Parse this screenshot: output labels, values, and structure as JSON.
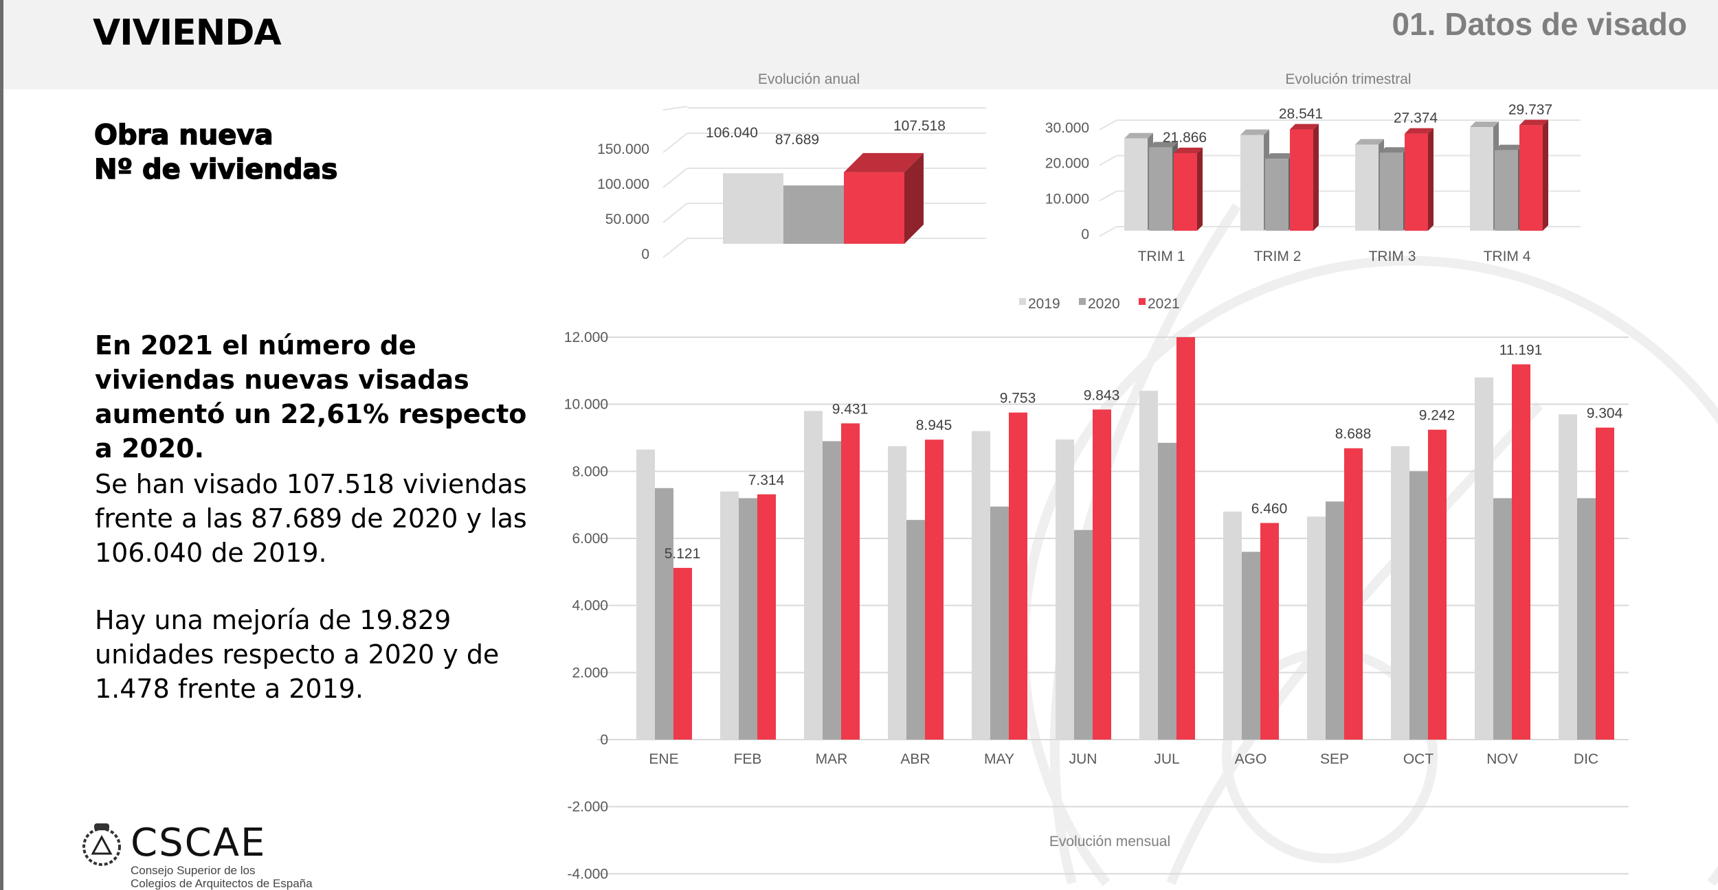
{
  "header": {
    "section": "VIVIENDA",
    "page_title": "01. Datos de visado"
  },
  "subtitle": {
    "line1": "Obra nueva",
    "line2": "Nº de viviendas"
  },
  "text": {
    "p1": "En 2021 el número de viviendas nuevas visadas aumentó un 22,61% respecto a 2020.",
    "p2": "Se han visado 107.518 viviendas frente a las 87.689 de 2020 y las 106.040 de 2019.",
    "p3": "Hay una mejoría de 19.829 unidades respecto a 2020 y de 1.478 frente a 2019."
  },
  "logo": {
    "name": "CSCAE",
    "sub1": "Consejo Superior de los",
    "sub2": "Colegios de Arquitectos de España"
  },
  "colors": {
    "2019": "#d9d9d9",
    "2020": "#a6a6a6",
    "2021": "#ee3a4a"
  },
  "chart_data": [
    {
      "type": "bar",
      "title": "Evolución anual",
      "categories": [
        "2019",
        "2020",
        "2021"
      ],
      "values": [
        106040,
        87689,
        107518
      ],
      "labels": [
        "106.040",
        "87.689",
        "107.518"
      ],
      "yticks": [
        "0",
        "50.000",
        "100.000",
        "150.000"
      ],
      "ylim": [
        0,
        150000
      ]
    },
    {
      "type": "bar",
      "title": "Evolución trimestral",
      "categories": [
        "TRIM 1",
        "TRIM 2",
        "TRIM 3",
        "TRIM 4"
      ],
      "series": [
        {
          "name": "2019",
          "values": [
            26000,
            27000,
            24300,
            29200
          ]
        },
        {
          "name": "2020",
          "values": [
            23500,
            20300,
            22000,
            22700
          ]
        },
        {
          "name": "2021",
          "values": [
            21866,
            28541,
            27374,
            29737
          ]
        }
      ],
      "labels_2021": [
        "21.866",
        "28.541",
        "27.374",
        "29.737"
      ],
      "yticks": [
        "0",
        "10.000",
        "20.000",
        "30.000"
      ],
      "ylim": [
        0,
        30000
      ]
    },
    {
      "type": "bar",
      "title": "Evolución mensual",
      "legend": [
        "2019",
        "2020",
        "2021"
      ],
      "legend_position": "top",
      "categories": [
        "ENE",
        "FEB",
        "MAR",
        "ABR",
        "MAY",
        "JUN",
        "JUL",
        "AGO",
        "SEP",
        "OCT",
        "NOV",
        "DIC"
      ],
      "series": [
        {
          "name": "2019",
          "values": [
            8650,
            7400,
            9800,
            8750,
            9200,
            8950,
            10400,
            6800,
            6650,
            8750,
            10800,
            9700
          ]
        },
        {
          "name": "2020",
          "values": [
            7500,
            7200,
            8900,
            6550,
            6950,
            6250,
            8850,
            5600,
            7100,
            8000,
            7200,
            7200
          ]
        },
        {
          "name": "2021",
          "values": [
            5121,
            7314,
            9431,
            8945,
            9753,
            9843,
            12226,
            6460,
            8688,
            9242,
            11191,
            9304
          ]
        }
      ],
      "labels_2021": [
        "5.121",
        "7.314",
        "9.431",
        "8.945",
        "9.753",
        "9.843",
        "",
        "6.460",
        "8.688",
        "9.242",
        "11.191",
        "9.304"
      ],
      "yticks": [
        "-4.000",
        "-2.000",
        "0",
        "2.000",
        "4.000",
        "6.000",
        "8.000",
        "10.000",
        "12.000"
      ],
      "ylim": [
        -4000,
        12000
      ]
    }
  ]
}
